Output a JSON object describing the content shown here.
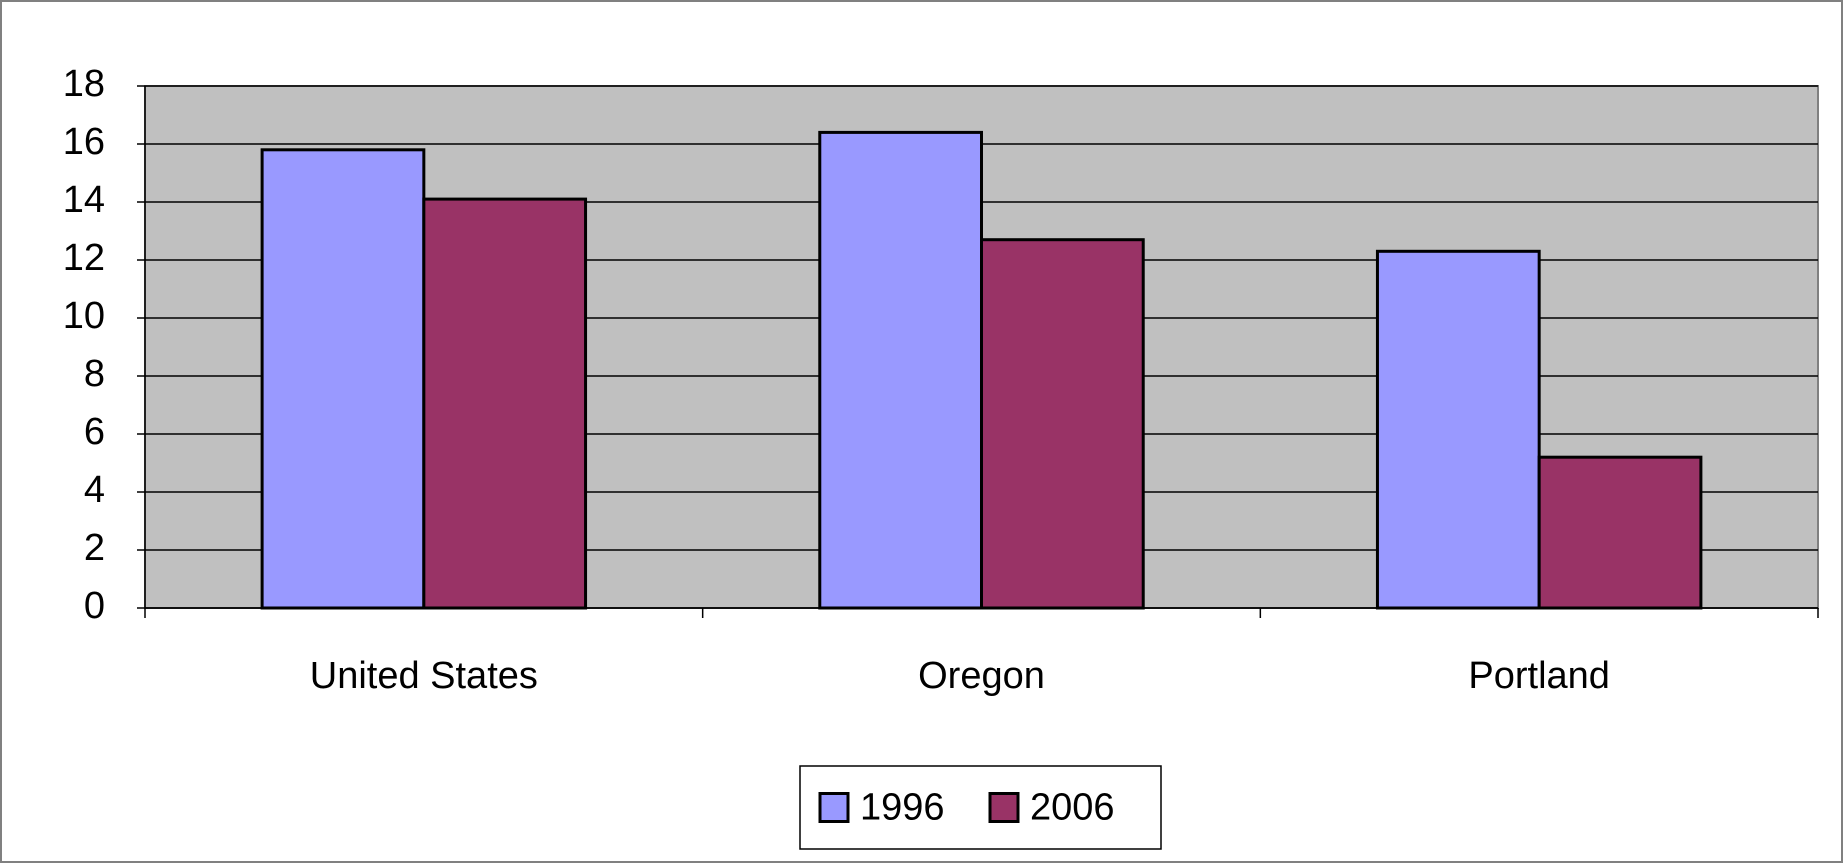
{
  "chart_data": {
    "type": "bar",
    "categories": [
      "United States",
      "Oregon",
      "Portland"
    ],
    "series": [
      {
        "name": "1996",
        "color": "#9999ff",
        "values": [
          15.8,
          16.4,
          12.3
        ]
      },
      {
        "name": "2006",
        "color": "#993366",
        "values": [
          14.1,
          12.7,
          5.2
        ]
      }
    ],
    "ylim": [
      0,
      18
    ],
    "yticks": [
      0,
      2,
      4,
      6,
      8,
      10,
      12,
      14,
      16,
      18
    ],
    "grid": true,
    "legend": "bottom"
  }
}
